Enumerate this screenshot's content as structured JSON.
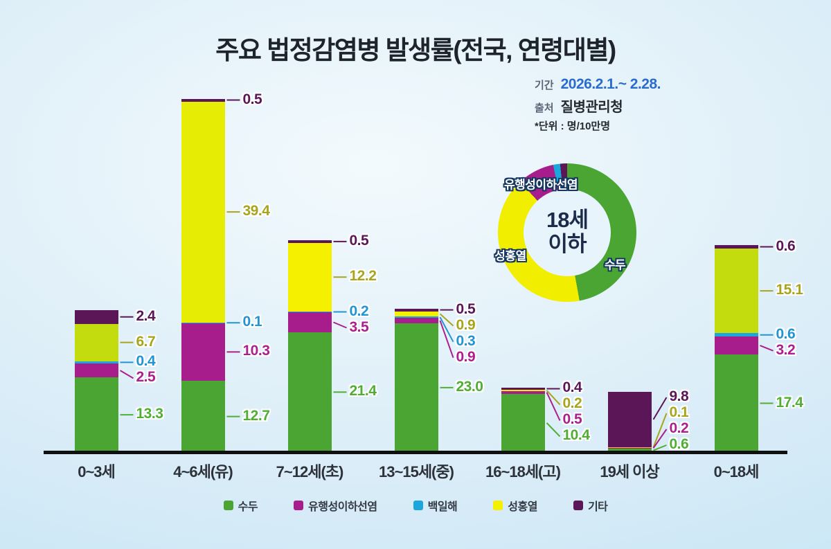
{
  "title": "주요 법정감염병 발생률(전국, 연령대별)",
  "meta": {
    "period_label": "기간",
    "period_value": "2026.2.1.~ 2.28.",
    "source_label": "출처",
    "source_value": "질병관리청",
    "unit_note": "*단위 : 명/10만명"
  },
  "colors": {
    "background_center": "#f3fafd",
    "background_edge": "#bfe2f4",
    "period_value_blue": "#2a6ccd",
    "axis_line": "#101010",
    "label_outline": "#ffffff",
    "donut_label_outline": "#14365f"
  },
  "chart_data": [
    {
      "type": "bar",
      "stacked": true,
      "title": "주요 법정감염병 발생률(전국, 연령대별)",
      "unit": "명/10만명",
      "grid": false,
      "series": [
        {
          "id": "sudu",
          "name": "수두",
          "color": "#4aa532",
          "label_color": "#4fae33"
        },
        {
          "id": "mumps",
          "name": "유행성이하선염",
          "color": "#a81d8c",
          "label_color": "#ab1f8e"
        },
        {
          "id": "pertussis",
          "name": "백일해",
          "color": "#1ba7dc",
          "label_color": "#2094d4"
        },
        {
          "id": "scarlet",
          "name": "성홍열",
          "color": "#f4f000",
          "label_color": "#a8a51d"
        },
        {
          "id": "etc",
          "name": "기타",
          "color": "#5a1656",
          "label_color": "#5a1656"
        }
      ],
      "categories": [
        "0~3세",
        "4~6세(유)",
        "7~12세(초)",
        "13~15세(중)",
        "16~18세(고)",
        "19세 이상",
        "0~18세"
      ],
      "bars": [
        {
          "category": "0~3세",
          "values": {
            "sudu": 13.3,
            "mumps": 2.5,
            "pertussis": 0.4,
            "scarlet": 6.7,
            "etc": 2.4
          },
          "scarlet_color": "#c3dc0e"
        },
        {
          "category": "4~6세(유)",
          "values": {
            "sudu": 12.7,
            "mumps": 10.3,
            "pertussis": 0.1,
            "scarlet": 39.4,
            "etc": 0.5
          },
          "scarlet_color": "#e6ec04"
        },
        {
          "category": "7~12세(초)",
          "values": {
            "sudu": 21.4,
            "mumps": 3.5,
            "pertussis": 0.2,
            "scarlet": 12.2,
            "etc": 0.5
          },
          "scarlet_color": "#f4f000"
        },
        {
          "category": "13~15세(중)",
          "values": {
            "sudu": 23.0,
            "mumps": 0.9,
            "pertussis": 0.3,
            "scarlet": 0.9,
            "etc": 0.5
          },
          "scarlet_color": "#f4f000"
        },
        {
          "category": "16~18세(고)",
          "values": {
            "sudu": 10.4,
            "mumps": 0.5,
            "pertussis": 0,
            "scarlet": 0.2,
            "etc": 0.4
          },
          "scarlet_color": "#f0ec00"
        },
        {
          "category": "19세 이상",
          "values": {
            "sudu": 0.6,
            "mumps": 0.2,
            "pertussis": 0,
            "scarlet": 0.1,
            "etc": 9.8
          },
          "scarlet_color": "#e0d51c"
        },
        {
          "category": "0~18세",
          "values": {
            "sudu": 17.4,
            "mumps": 3.2,
            "pertussis": 0.6,
            "scarlet": 15.1,
            "etc": 0.6
          },
          "scarlet_color": "#c3dc0e"
        }
      ]
    },
    {
      "type": "pie",
      "donut": true,
      "center_label_line1": "18세",
      "center_label_line2": "이하",
      "order": [
        "sudu",
        "scarlet",
        "mumps",
        "pertussis",
        "etc"
      ],
      "values": {
        "sudu": 17.4,
        "scarlet": 15.1,
        "mumps": 3.2,
        "pertussis": 0.6,
        "etc": 0.6
      },
      "ring_labels": [
        {
          "id": "mumps",
          "text": "유행성이하선염"
        },
        {
          "id": "scarlet",
          "text": "성홍열"
        },
        {
          "id": "sudu",
          "text": "수두"
        }
      ]
    }
  ]
}
